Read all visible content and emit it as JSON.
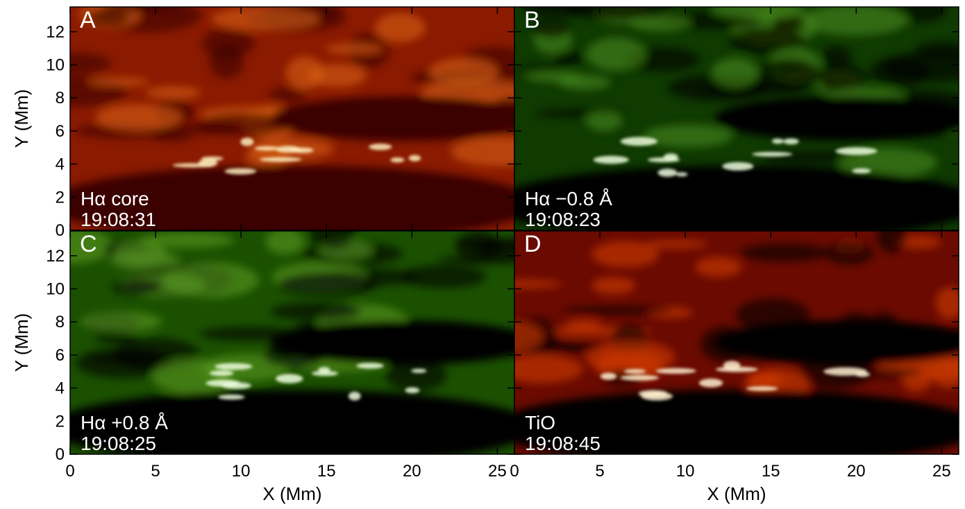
{
  "chart_data": [
    {
      "type": "image",
      "panel": "A",
      "line1": "Hα core",
      "line2": "19:08:31",
      "palette": [
        "#3a0500",
        "#8a1a00",
        "#d86010",
        "#fff0c0"
      ],
      "xlim": [
        0,
        26
      ],
      "ylim": [
        0,
        13.5
      ],
      "xticks": [
        0,
        5,
        10,
        15,
        20,
        25
      ],
      "yticks": [
        0,
        2,
        4,
        6,
        8,
        10,
        12
      ],
      "ylabel": "Y (Mm)"
    },
    {
      "type": "image",
      "panel": "B",
      "line1": "Hα −0.8 Å",
      "line2": "19:08:23",
      "palette": [
        "#000000",
        "#0f3a00",
        "#4a8a1a",
        "#f0ffe0"
      ],
      "xlim": [
        0,
        26
      ],
      "ylim": [
        0,
        13.5
      ],
      "xticks": [
        0,
        5,
        10,
        15,
        20,
        25
      ],
      "yticks": [
        0,
        2,
        4,
        6,
        8,
        10,
        12
      ]
    },
    {
      "type": "image",
      "panel": "C",
      "line1": "Hα +0.8 Å",
      "line2": "19:08:25",
      "palette": [
        "#000000",
        "#1a5000",
        "#5a9a20",
        "#f0ffe0"
      ],
      "xlim": [
        0,
        26
      ],
      "ylim": [
        0,
        13.5
      ],
      "xticks": [
        0,
        5,
        10,
        15,
        20,
        25
      ],
      "yticks": [
        0,
        2,
        4,
        6,
        8,
        10,
        12
      ],
      "xlabel": "X (Mm)",
      "ylabel": "Y (Mm)"
    },
    {
      "type": "image",
      "panel": "D",
      "line1": "TiO",
      "line2": "19:08:45",
      "palette": [
        "#000000",
        "#6a0a00",
        "#d03a00",
        "#fff0d0"
      ],
      "xlim": [
        0,
        26
      ],
      "ylim": [
        0,
        13.5
      ],
      "xticks": [
        0,
        5,
        10,
        15,
        20,
        25
      ],
      "yticks": [
        0,
        2,
        4,
        6,
        8,
        10,
        12
      ],
      "xlabel": "X (Mm)"
    }
  ]
}
